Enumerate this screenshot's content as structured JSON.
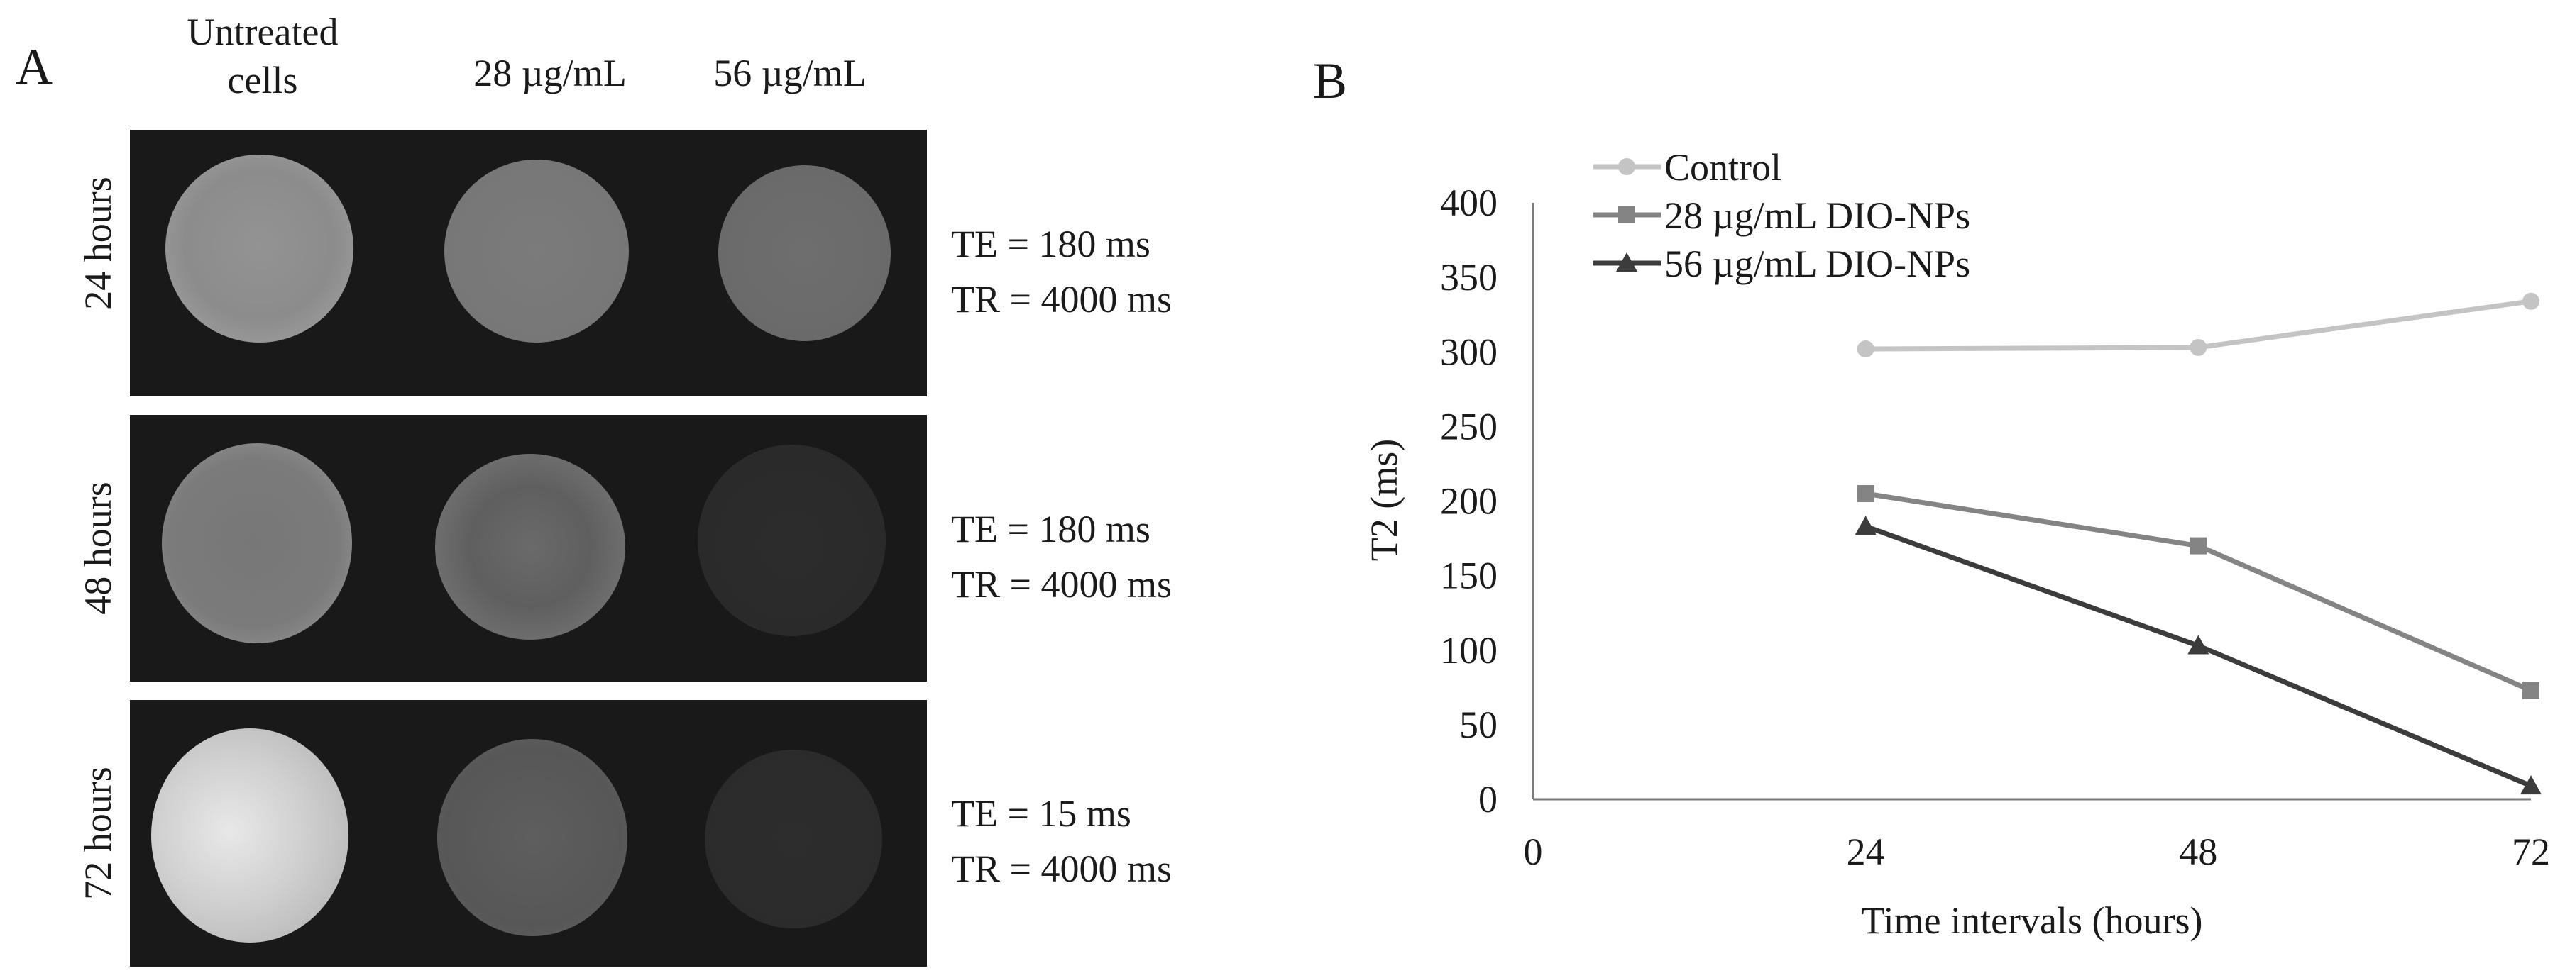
{
  "panel_a": {
    "letter": "A",
    "column_headers": [
      "Untreated\ncells",
      "28 µg/mL",
      "56 µg/mL"
    ],
    "rows": [
      {
        "label": "24 hours",
        "te": "TE = 180 ms",
        "tr": "TR = 4000 ms"
      },
      {
        "label": "48 hours",
        "te": "TE = 180 ms",
        "tr": "TR = 4000 ms"
      },
      {
        "label": "72 hours",
        "te": "TE = 15 ms",
        "tr": "TR = 4000 ms"
      }
    ]
  },
  "panel_b": {
    "letter": "B"
  },
  "chart_data": {
    "type": "line",
    "title": "",
    "xlabel": "Time intervals  (hours)",
    "ylabel": "T2 (ms)",
    "x_ticks": [
      0,
      24,
      48,
      72
    ],
    "x_range": [
      0,
      72
    ],
    "y_ticks": [
      0,
      50,
      100,
      150,
      200,
      250,
      300,
      350,
      400
    ],
    "ylim": [
      0,
      400
    ],
    "grid": false,
    "legend": "top-left",
    "x": [
      24,
      48,
      72
    ],
    "series": [
      {
        "name": "Control",
        "values": [
          302,
          303,
          334
        ],
        "color": "#c4c4c4",
        "marker": "circle"
      },
      {
        "name": "28 µg/mL DIO-NPs",
        "values": [
          205,
          170,
          73
        ],
        "color": "#848484",
        "marker": "square"
      },
      {
        "name": "56 µg/mL DIO-NPs",
        "values": [
          183,
          103,
          9
        ],
        "color": "#3c3c3c",
        "marker": "triangle"
      }
    ]
  }
}
